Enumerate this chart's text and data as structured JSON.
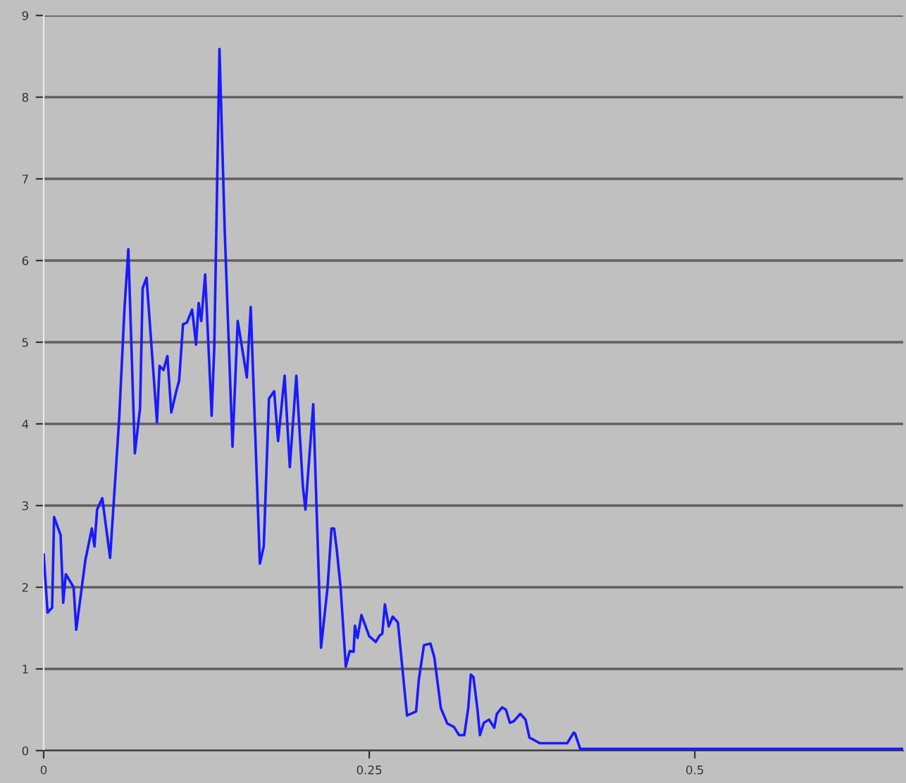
{
  "chart_data": {
    "type": "line",
    "x": [
      0,
      0.003,
      0.0065,
      0.008,
      0.013,
      0.015,
      0.017,
      0.023,
      0.025,
      0.032,
      0.037,
      0.039,
      0.041,
      0.045,
      0.051,
      0.055,
      0.058,
      0.062,
      0.065,
      0.07,
      0.074,
      0.076,
      0.079,
      0.087,
      0.089,
      0.092,
      0.095,
      0.098,
      0.102,
      0.104,
      0.107,
      0.11,
      0.114,
      0.117,
      0.119,
      0.121,
      0.124,
      0.129,
      0.131,
      0.135,
      0.139,
      0.145,
      0.149,
      0.156,
      0.159,
      0.166,
      0.169,
      0.173,
      0.177,
      0.18,
      0.185,
      0.189,
      0.194,
      0.199,
      0.201,
      0.207,
      0.213,
      0.218,
      0.221,
      0.223,
      0.225,
      0.228,
      0.232,
      0.235,
      0.238,
      0.239,
      0.241,
      0.244,
      0.25,
      0.255,
      0.258,
      0.26,
      0.262,
      0.265,
      0.268,
      0.272,
      0.279,
      0.286,
      0.288,
      0.292,
      0.297,
      0.3,
      0.305,
      0.31,
      0.315,
      0.319,
      0.323,
      0.326,
      0.328,
      0.33,
      0.333,
      0.335,
      0.338,
      0.342,
      0.346,
      0.348,
      0.352,
      0.355,
      0.358,
      0.361,
      0.366,
      0.37,
      0.373,
      0.381,
      0.402,
      0.407,
      0.408,
      0.412,
      0.66
    ],
    "series": [
      {
        "color": "#1a1aff",
        "values": [
          2.4,
          1.69,
          1.75,
          2.86,
          2.64,
          1.81,
          2.16,
          2.0,
          1.48,
          2.33,
          2.72,
          2.5,
          2.95,
          3.09,
          2.36,
          3.33,
          4.07,
          5.4,
          6.14,
          3.64,
          4.19,
          5.66,
          5.79,
          4.02,
          4.71,
          4.66,
          4.83,
          4.14,
          4.41,
          4.53,
          5.22,
          5.24,
          5.4,
          4.97,
          5.48,
          5.26,
          5.83,
          4.1,
          4.93,
          8.59,
          6.38,
          3.72,
          5.26,
          4.57,
          5.43,
          2.29,
          2.5,
          4.31,
          4.4,
          3.79,
          4.59,
          3.47,
          4.59,
          3.24,
          2.95,
          4.24,
          1.26,
          2.0,
          2.72,
          2.72,
          2.47,
          2.0,
          1.03,
          1.22,
          1.21,
          1.53,
          1.38,
          1.66,
          1.4,
          1.33,
          1.41,
          1.43,
          1.79,
          1.52,
          1.64,
          1.57,
          0.43,
          0.48,
          0.86,
          1.29,
          1.31,
          1.14,
          0.52,
          0.33,
          0.29,
          0.19,
          0.19,
          0.52,
          0.93,
          0.9,
          0.52,
          0.19,
          0.34,
          0.38,
          0.28,
          0.45,
          0.53,
          0.5,
          0.34,
          0.36,
          0.45,
          0.38,
          0.16,
          0.09,
          0.09,
          0.22,
          0.21,
          0.02,
          0.02
        ]
      }
    ],
    "xlim": [
      0,
      0.66
    ],
    "ylim": [
      0,
      9
    ],
    "xticks": [
      0,
      0.25,
      0.5
    ],
    "yticks": [
      0,
      1,
      2,
      3,
      4,
      5,
      6,
      7,
      8,
      9
    ],
    "grid": "y",
    "line_style": "solid"
  }
}
